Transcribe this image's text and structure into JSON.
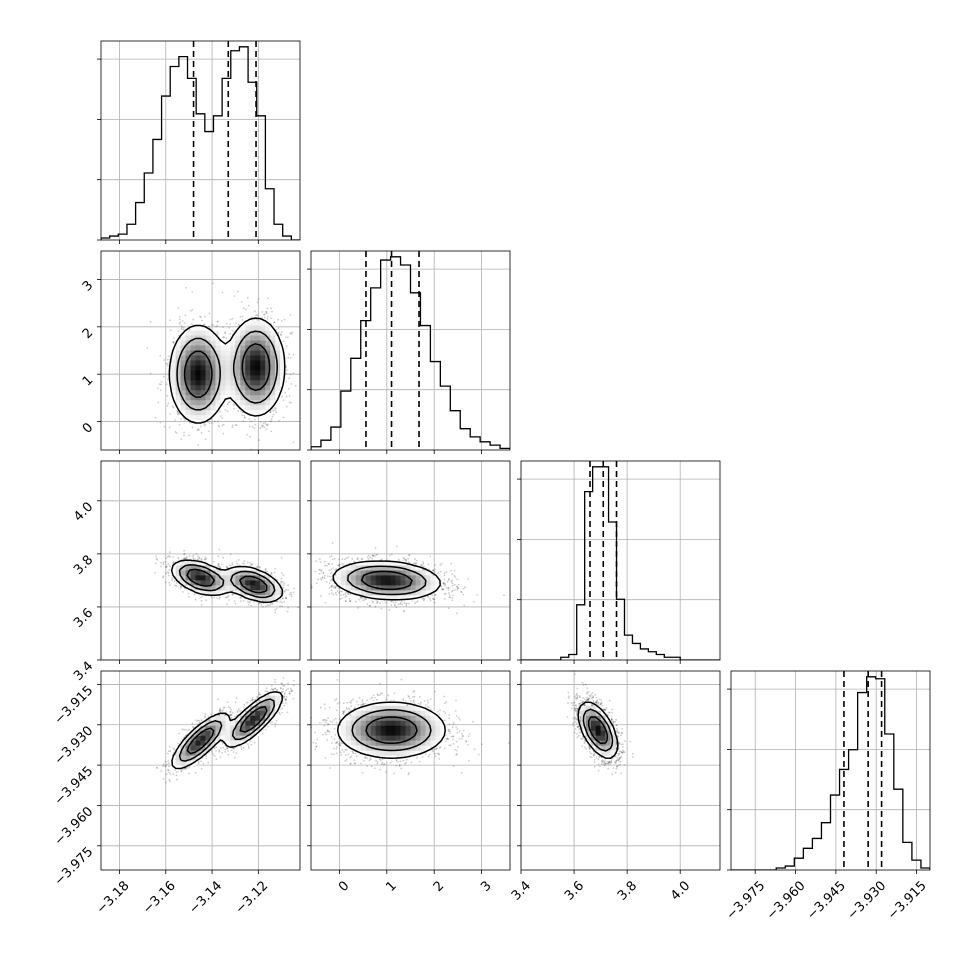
{
  "chart_data": {
    "type": "corner",
    "params": [
      {
        "ticks": [
          -3.18,
          -3.16,
          -3.14,
          -3.12
        ],
        "tick_labels": [
          "−3.18",
          "−3.16",
          "−3.14",
          "−3.12"
        ],
        "range": [
          -3.188,
          -3.102
        ],
        "quantiles": [
          -3.148,
          -3.133,
          -3.121
        ]
      },
      {
        "ticks": [
          0,
          1,
          2,
          3
        ],
        "tick_labels": [
          "0",
          "1",
          "2",
          "3"
        ],
        "range": [
          -0.6,
          3.6
        ],
        "quantiles": [
          0.56,
          1.1,
          1.68
        ]
      },
      {
        "ticks": [
          3.4,
          3.6,
          3.8,
          4.0
        ],
        "tick_labels": [
          "3.4",
          "3.6",
          "3.8",
          "4.0"
        ],
        "range": [
          3.4,
          4.15
        ],
        "quantiles": [
          3.66,
          3.71,
          3.76
        ]
      },
      {
        "ticks": [
          -3.975,
          -3.96,
          -3.945,
          -3.93,
          -3.915
        ],
        "tick_labels": [
          "−3.975",
          "−3.960",
          "−3.945",
          "−3.930",
          "−3.915"
        ],
        "range": [
          -3.984,
          -3.91
        ],
        "quantiles": [
          -3.942,
          -3.933,
          -3.928
        ]
      }
    ],
    "histograms": [
      {
        "param": 0,
        "counts": [
          1,
          2,
          3,
          8,
          19,
          34,
          51,
          73,
          88,
          93,
          82,
          64,
          55,
          63,
          82,
          96,
          98,
          80,
          63,
          26,
          8,
          2,
          0
        ]
      },
      {
        "param": 1,
        "counts": [
          2,
          6,
          14,
          36,
          56,
          79,
          99,
          116,
          118,
          113,
          96,
          76,
          54,
          39,
          24,
          13,
          8,
          5,
          3,
          1
        ]
      },
      {
        "param": 2,
        "counts": [
          0,
          0,
          0,
          0,
          0,
          1,
          2,
          20,
          61,
          70,
          70,
          50,
          22,
          9,
          6,
          4,
          3,
          2,
          1,
          1,
          0,
          0,
          0,
          0,
          0
        ]
      },
      {
        "param": 3,
        "counts": [
          0,
          0,
          0,
          0,
          0,
          1,
          2,
          6,
          11,
          16,
          24,
          38,
          51,
          61,
          90,
          98,
          97,
          69,
          41,
          14,
          5,
          1
        ]
      }
    ],
    "pairs": [
      {
        "row": 1,
        "col": 0,
        "modes": [
          {
            "x": -3.146,
            "y": 1.0,
            "sx": 0.006,
            "sy": 0.5,
            "rho": 0.0,
            "w": 1
          },
          {
            "x": -3.121,
            "y": 1.15,
            "sx": 0.006,
            "sy": 0.5,
            "rho": 0.0,
            "w": 1
          }
        ]
      },
      {
        "row": 2,
        "col": 0,
        "modes": [
          {
            "x": -3.145,
            "y": 3.71,
            "sx": 0.006,
            "sy": 0.032,
            "rho": -0.45,
            "w": 1
          },
          {
            "x": -3.122,
            "y": 3.685,
            "sx": 0.006,
            "sy": 0.032,
            "rho": -0.45,
            "w": 1
          }
        ]
      },
      {
        "row": 2,
        "col": 1,
        "modes": [
          {
            "x": 1.0,
            "y": 3.7,
            "sx": 0.55,
            "sy": 0.035,
            "rho": -0.15,
            "w": 1
          }
        ]
      },
      {
        "row": 3,
        "col": 0,
        "modes": [
          {
            "x": -3.145,
            "y": -3.936,
            "sx": 0.006,
            "sy": 0.005,
            "rho": 0.8,
            "w": 1
          },
          {
            "x": -3.122,
            "y": -3.928,
            "sx": 0.006,
            "sy": 0.005,
            "rho": 0.8,
            "w": 1
          }
        ]
      },
      {
        "row": 3,
        "col": 1,
        "modes": [
          {
            "x": 1.1,
            "y": -3.932,
            "sx": 0.55,
            "sy": 0.005,
            "rho": 0.0,
            "w": 1
          }
        ]
      },
      {
        "row": 3,
        "col": 2,
        "modes": [
          {
            "x": 3.69,
            "y": -3.932,
            "sx": 0.035,
            "sy": 0.005,
            "rho": -0.55,
            "w": 1
          }
        ]
      }
    ],
    "grid": true,
    "title": "",
    "xlabel": "",
    "ylabel": ""
  }
}
